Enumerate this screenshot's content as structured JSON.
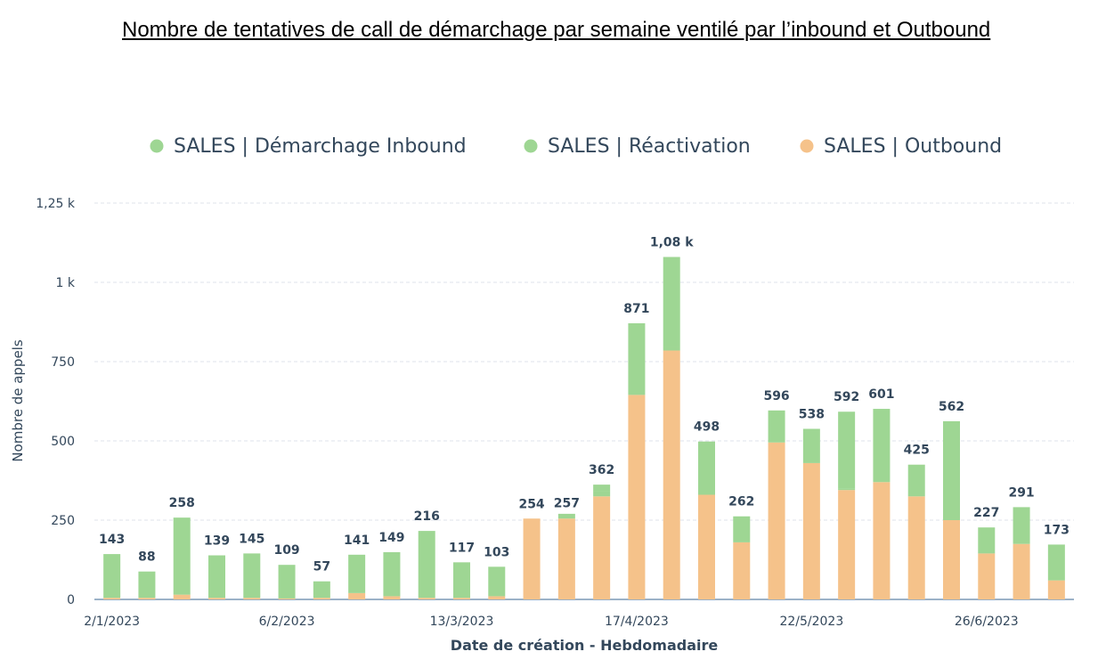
{
  "page_title": "Nombre de tentatives de call de démarchage par semaine ventilé par l’inbound et Outbound",
  "chart_data": {
    "type": "bar",
    "stacked": true,
    "title": "Nombre de tentatives de call de démarchage par semaine ventilé par l’inbound et Outbound",
    "xlabel": "Date de création - Hebdomadaire",
    "ylabel": "Nombre de appels",
    "ylim": [
      0,
      1250
    ],
    "yticks": [
      0,
      250,
      500,
      750,
      1000,
      1250
    ],
    "ytick_labels": [
      "0",
      "250",
      "500",
      "750",
      "1 k",
      "1,25 k"
    ],
    "x_tick_labels": [
      {
        "index": 0,
        "label": "2/1/2023"
      },
      {
        "index": 5,
        "label": "6/2/2023"
      },
      {
        "index": 10,
        "label": "13/3/2023"
      },
      {
        "index": 15,
        "label": "17/4/2023"
      },
      {
        "index": 20,
        "label": "22/5/2023"
      },
      {
        "index": 25,
        "label": "26/6/2023"
      }
    ],
    "grid": true,
    "legend_position": "top",
    "categories": [
      "2/1/2023",
      "9/1/2023",
      "16/1/2023",
      "23/1/2023",
      "30/1/2023",
      "6/2/2023",
      "13/2/2023",
      "20/2/2023",
      "27/2/2023",
      "6/3/2023",
      "13/3/2023",
      "20/3/2023",
      "27/3/2023",
      "3/4/2023",
      "10/4/2023",
      "17/4/2023",
      "24/4/2023",
      "1/5/2023",
      "8/5/2023",
      "15/5/2023",
      "22/5/2023",
      "29/5/2023",
      "5/6/2023",
      "12/6/2023",
      "19/6/2023",
      "26/6/2023",
      "3/7/2023",
      "10/7/2023"
    ],
    "series": [
      {
        "name": "SALES | Outbound",
        "color": "#f5c28a",
        "values": [
          5,
          5,
          15,
          5,
          5,
          3,
          5,
          20,
          10,
          5,
          5,
          10,
          255,
          255,
          325,
          645,
          785,
          330,
          180,
          495,
          430,
          345,
          370,
          325,
          250,
          145,
          175,
          60
        ]
      },
      {
        "name": "SALES | Réactivation",
        "color": "#9ed693",
        "values": [
          0,
          0,
          0,
          0,
          0,
          0,
          0,
          0,
          0,
          0,
          0,
          0,
          0,
          15,
          15,
          0,
          10,
          0,
          0,
          0,
          0,
          5,
          0,
          0,
          0,
          0,
          0,
          0
        ]
      },
      {
        "name": "SALES | Démarchage Inbound",
        "color": "#9ed693",
        "values": [
          138,
          83,
          243,
          134,
          140,
          106,
          52,
          121,
          139,
          211,
          112,
          93,
          -1,
          -13,
          22,
          226,
          285,
          168,
          82,
          101,
          108,
          242,
          231,
          100,
          312,
          82,
          116,
          113
        ]
      }
    ],
    "totals": [
      143,
      88,
      258,
      139,
      145,
      109,
      57,
      141,
      149,
      216,
      117,
      103,
      254,
      257,
      362,
      871,
      1080,
      498,
      262,
      596,
      538,
      592,
      601,
      425,
      562,
      227,
      291,
      173
    ],
    "total_labels": [
      "143",
      "88",
      "258",
      "139",
      "145",
      "109",
      "57",
      "141",
      "149",
      "216",
      "117",
      "103",
      "254",
      "257",
      "362",
      "871",
      "1,08 k",
      "498",
      "262",
      "596",
      "538",
      "592",
      "601",
      "425",
      "562",
      "227",
      "291",
      "173"
    ]
  },
  "legend": [
    {
      "label": "SALES | Démarchage Inbound",
      "color": "#9ed693"
    },
    {
      "label": "SALES | Réactivation",
      "color": "#9ed693"
    },
    {
      "label": "SALES | Outbound",
      "color": "#f5c28a"
    }
  ],
  "colors": {
    "axis_text": "#33475b",
    "grid": "#dfe3eb",
    "baseline": "#7c98b6",
    "inbound": "#9ed693",
    "outbound": "#f5c28a"
  }
}
